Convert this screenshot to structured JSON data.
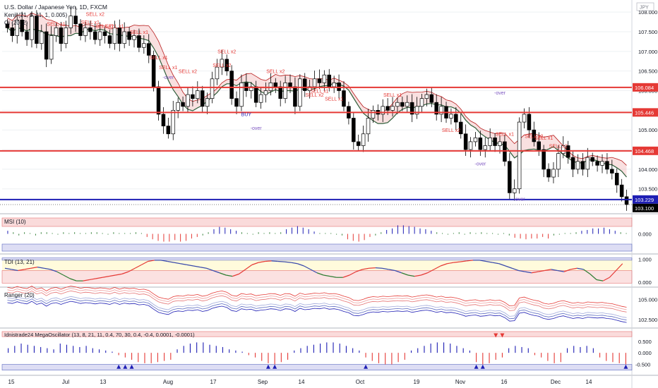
{
  "symbol": {
    "title": "U.S. Dollar / Japanese Yen, 1D, FXCM",
    "currency": "JPY"
  },
  "indicators_main": [
    "Kenji (21, 8, 11, 1, 0.005)",
    "Oi (20, 2)"
  ],
  "chart_data": [
    {
      "type": "candlestick",
      "name_label": "U.S. Dollar / Japanese Yen, 1D, FXCM",
      "y_ticks": [
        "108.000",
        "107.500",
        "107.000",
        "106.500",
        "106.000",
        "105.500",
        "105.000",
        "104.500",
        "104.000",
        "103.500"
      ],
      "ylim": [
        103.1,
        108.2
      ],
      "x_ticks": [
        "15",
        "Jul",
        "13",
        "Aug",
        "17",
        "Sep",
        "14",
        "Oct",
        "19",
        "Nov",
        "16",
        "Dec",
        "14"
      ],
      "price_labels": [
        {
          "value": 106.084,
          "text": "106.084",
          "color": "#e53935"
        },
        {
          "value": 105.446,
          "text": "105.446",
          "color": "#e53935"
        },
        {
          "value": 104.468,
          "text": "104.468",
          "color": "#e53935"
        },
        {
          "value": 103.229,
          "text": "103.229",
          "color": "#1e1eb4"
        },
        {
          "value": 103.1,
          "text": "103.100",
          "color": "#000000"
        }
      ],
      "horizontal_levels": [
        106.084,
        105.446,
        104.468,
        103.229
      ],
      "close_series": [
        107.6,
        107.4,
        107.8,
        107.5,
        107.3,
        107.9,
        107.2,
        107.5,
        106.8,
        107.4,
        107.6,
        107.2,
        107.6,
        107.9,
        107.7,
        107.4,
        107.6,
        107.5,
        107.3,
        107.5,
        107.4,
        107.2,
        107.6,
        107.2,
        107.5,
        107.3,
        107.4,
        107.1,
        107.2,
        106.9,
        106.1,
        105.4,
        105.1,
        104.9,
        105.5,
        105.7,
        105.6,
        105.9,
        105.8,
        106.0,
        105.6,
        105.8,
        106.3,
        106.6,
        106.8,
        106.5,
        105.8,
        105.6,
        106.2,
        106.0,
        106.1,
        105.7,
        105.9,
        106.0,
        106.2,
        106.1,
        105.8,
        106.2,
        106.1,
        105.6,
        106.3,
        106.0,
        106.1,
        106.3,
        106.2,
        106.4,
        106.1,
        106.2,
        106.0,
        105.6,
        105.3,
        104.7,
        104.6,
        104.9,
        105.3,
        105.5,
        105.4,
        105.6,
        105.5,
        105.6,
        105.7,
        105.6,
        105.7,
        105.4,
        105.6,
        105.8,
        105.9,
        105.7,
        105.4,
        105.6,
        105.3,
        105.4,
        105.2,
        104.9,
        104.5,
        104.7,
        104.8,
        104.5,
        104.6,
        104.8,
        104.6,
        104.7,
        104.2,
        103.4,
        103.5,
        105.2,
        105.4,
        105.0,
        104.7,
        104.5,
        104.0,
        103.8,
        104.0,
        104.4,
        104.6,
        104.3,
        104.0,
        104.2,
        104.0,
        104.3,
        104.2,
        104.1,
        104.2,
        104.0,
        103.9,
        103.6,
        103.3,
        103.1
      ],
      "annotations_sell": [
        "SELL x2",
        "SELL x1",
        "SELL x1",
        "SELL x2",
        "SELL x1",
        "SELL x1",
        "SELL x1",
        "SELL x1",
        "SELL x2",
        "SELL x2",
        "SELL x2",
        "SELL x2",
        "SELL x1",
        "SELL x2",
        "SELL x1",
        "SELL x1",
        "SELL x2",
        "SELL x1",
        "SELL x2",
        "SELL x1",
        "SELL x2"
      ],
      "annotations_other": [
        "-over",
        "BUY",
        "-over",
        "-over",
        "-over",
        "-over"
      ]
    },
    {
      "type": "bar",
      "name_label": "MSI (10)",
      "y_ticks": [
        "0.000"
      ],
      "values": [
        0.2,
        0.1,
        -0.1,
        0.1,
        0.05,
        -0.1,
        0.1,
        0.1,
        0.05,
        -0.05,
        0.1,
        0.05,
        0.1,
        0.05,
        0.05,
        0.1,
        0.1,
        0.05,
        -0.05,
        0.1,
        0.05,
        0.05,
        0.05,
        0.1,
        0.05,
        -0.2,
        -0.35,
        -0.45,
        -0.5,
        -0.5,
        -0.4,
        -0.5,
        -0.45,
        -0.3,
        -0.2,
        -0.1,
        0.1,
        0.3,
        0.45,
        0.4,
        0.3,
        0.2,
        0.1,
        0.05,
        -0.05,
        0.1,
        0.05,
        0.1,
        0.05,
        0.1,
        0.3,
        0.4,
        0.5,
        0.4,
        0.3,
        0.15,
        0.05,
        0.05,
        0.05,
        -0.05,
        -0.1,
        -0.35,
        -0.45,
        -0.5,
        -0.4,
        -0.2,
        -0.1,
        0.1,
        0.25,
        0.35,
        0.55,
        0.55,
        0.5,
        0.45,
        0.35,
        0.3,
        0.2,
        0.1,
        0.05,
        -0.05,
        0.05,
        0.1,
        -0.05,
        0.1,
        0.05,
        0.1,
        0.05,
        0.05,
        -0.05,
        0.05,
        -0.1,
        -0.25,
        -0.3,
        -0.35,
        -0.3,
        -0.3,
        -0.2,
        -0.3,
        -0.1,
        -0.05,
        0.05,
        0.05,
        0.1,
        0.2,
        0.25,
        0.35,
        0.35,
        0.4,
        0.3,
        0.2,
        0.1,
        0.05
      ]
    },
    {
      "type": "line",
      "name_label": "TDI (13, 21)",
      "y_ticks": [
        "1.000",
        "0.000"
      ],
      "ylim": [
        -0.1,
        1.1
      ],
      "values": [
        0.6,
        0.55,
        0.5,
        0.55,
        0.6,
        0.65,
        0.6,
        0.55,
        0.45,
        0.3,
        0.15,
        0.05,
        0.05,
        0.1,
        0.15,
        0.2,
        0.25,
        0.3,
        0.35,
        0.45,
        0.6,
        0.75,
        0.9,
        0.95,
        0.95,
        0.9,
        0.85,
        0.8,
        0.75,
        0.7,
        0.65,
        0.6,
        0.5,
        0.4,
        0.3,
        0.25,
        0.35,
        0.55,
        0.75,
        0.85,
        0.9,
        0.92,
        0.9,
        0.88,
        0.85,
        0.8,
        0.7,
        0.55,
        0.4,
        0.3,
        0.25,
        0.2,
        0.2,
        0.3,
        0.45,
        0.55,
        0.6,
        0.62,
        0.6,
        0.55,
        0.5,
        0.4,
        0.3,
        0.25,
        0.3,
        0.4,
        0.55,
        0.7,
        0.8,
        0.85,
        0.88,
        0.92,
        0.95,
        0.95,
        0.9,
        0.85,
        0.8,
        0.7,
        0.6,
        0.5,
        0.45,
        0.4,
        0.45,
        0.5,
        0.55,
        0.5,
        0.45,
        0.55,
        0.6,
        0.55,
        0.35,
        0.1,
        0.05,
        0.2,
        0.5,
        0.8
      ]
    },
    {
      "type": "line",
      "name_label": "Ranger (20)",
      "y_ticks": [
        "105.000",
        "102.500"
      ],
      "ylim": [
        101.8,
        106.2
      ]
    },
    {
      "type": "bar",
      "name_label": "Idnistrade24 MegaOscillator (13, 8, 21, 11, 0.4, 70, 30, 0.4, -0.4, 0.0001, -0.0001)",
      "y_ticks": [
        "0.500",
        "0.000",
        "-0.500"
      ],
      "ylim": [
        -0.85,
        0.95
      ],
      "values": [
        0.2,
        0.3,
        0.4,
        0.35,
        0.3,
        0.25,
        0.2,
        0.15,
        0.4,
        0.35,
        0.3,
        0.25,
        0.3,
        0.2,
        0.15,
        0.1,
        0.05,
        -0.1,
        -0.2,
        -0.3,
        -0.4,
        -0.45,
        -0.45,
        -0.4,
        -0.35,
        -0.3,
        0.15,
        0.3,
        0.4,
        0.45,
        0.45,
        0.35,
        0.3,
        0.25,
        0.15,
        0.1,
        0.05,
        -0.1,
        -0.2,
        -0.35,
        -0.45,
        -0.5,
        -0.4,
        -0.3,
        0.1,
        0.2,
        0.3,
        0.35,
        0.4,
        0.45,
        0.45,
        0.4,
        0.3,
        0.2,
        0.1,
        -0.2,
        -0.35,
        -0.45,
        -0.5,
        -0.5,
        -0.4,
        -0.3,
        0.1,
        0.2,
        0.3,
        0.4,
        0.45,
        0.45,
        0.4,
        0.3,
        0.2,
        0.1,
        -0.4,
        -0.5,
        -0.45,
        -0.3,
        -0.2,
        0.2,
        0.3,
        0.25,
        0.2,
        -0.1,
        -0.2,
        -0.35,
        -0.45,
        -0.4,
        0.2,
        0.3,
        0.25,
        0.3,
        0.2,
        -0.2,
        -0.35,
        -0.4,
        -0.45,
        -0.5
      ]
    }
  ],
  "x_axis_labels": [
    "15",
    "Jul",
    "13",
    "Aug",
    "17",
    "Sep",
    "14",
    "Oct",
    "19",
    "Nov",
    "16",
    "Dec",
    "14"
  ]
}
